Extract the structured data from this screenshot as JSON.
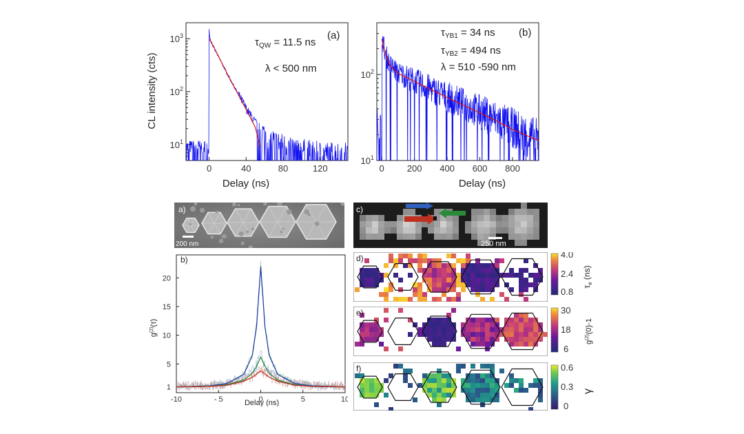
{
  "chart_data": [
    {
      "id": "top_a",
      "type": "line",
      "panel_label": "(a)",
      "annotations": [
        "τQW = 11.5 ns",
        "λ < 500 nm"
      ],
      "xlabel": "Delay (ns)",
      "ylabel": "CL intensity (cts)",
      "y_scale": "log",
      "xlim": [
        -25,
        150
      ],
      "ylim": [
        5,
        2000
      ],
      "x_ticks": [
        "0",
        "40",
        "80",
        "120"
      ],
      "y_ticks": [
        "10^1",
        "10^2",
        "10^3"
      ],
      "series": [
        {
          "color": "#1010ee",
          "style": "noisy-data",
          "x": [
            -20,
            -5,
            0,
            1,
            5,
            10,
            20,
            30,
            40,
            50,
            60,
            70,
            80,
            100,
            120,
            140
          ],
          "y": [
            9,
            8,
            1500,
            1000,
            680,
            460,
            210,
            100,
            48,
            26,
            16,
            12,
            10,
            8,
            7,
            7
          ]
        },
        {
          "color": "#d81818",
          "style": "fit",
          "x": [
            0,
            5,
            10,
            20,
            30,
            40,
            50,
            55
          ],
          "y": [
            1000,
            690,
            470,
            210,
            98,
            46,
            21,
            9
          ]
        }
      ]
    },
    {
      "id": "top_b",
      "type": "line",
      "panel_label": "(b)",
      "annotations": [
        "τYB1 = 34 ns",
        "τYB2 = 494 ns",
        "λ = 510 -590 nm"
      ],
      "xlabel": "Delay (ns)",
      "ylabel": "",
      "y_scale": "log",
      "xlim": [
        -30,
        960
      ],
      "ylim": [
        10,
        400
      ],
      "x_ticks": [
        "0",
        "200",
        "400",
        "600",
        "800"
      ],
      "y_ticks": [
        "10^1",
        "10^2"
      ],
      "series": [
        {
          "color": "#1010ee",
          "style": "noisy-data",
          "x": [
            -20,
            0,
            5,
            20,
            50,
            100,
            200,
            300,
            400,
            500,
            600,
            700,
            800,
            900,
            960
          ],
          "y": [
            25,
            300,
            260,
            180,
            130,
            105,
            85,
            68,
            55,
            45,
            37,
            30,
            24,
            19,
            17
          ]
        },
        {
          "color": "#d81818",
          "style": "fit",
          "x": [
            0,
            20,
            50,
            100,
            200,
            300,
            400,
            500,
            600,
            700,
            800,
            900,
            960
          ],
          "y": [
            260,
            175,
            128,
            103,
            83,
            67,
            54,
            44,
            36,
            29,
            23,
            19,
            17
          ]
        }
      ]
    },
    {
      "id": "g2",
      "type": "line",
      "panel_label": "b)",
      "xlabel": "Delay (ns)",
      "ylabel": "g(2)(τ)",
      "xlim": [
        -10,
        10
      ],
      "ylim": [
        0,
        24
      ],
      "x_ticks": [
        "-10",
        "- 5",
        "0",
        "5",
        "10"
      ],
      "y_ticks": [
        "1",
        "5",
        "10",
        "15",
        "20"
      ],
      "series": [
        {
          "color": "#2040a0",
          "x": [
            -10,
            -6,
            -4,
            -2,
            -1,
            -0.5,
            0,
            0.5,
            1,
            2,
            4,
            6,
            10
          ],
          "y": [
            1,
            1.2,
            1.6,
            3.2,
            6.5,
            11.5,
            22,
            11.5,
            6.5,
            3.2,
            1.6,
            1.2,
            1
          ]
        },
        {
          "color": "#2a8a3a",
          "x": [
            -10,
            -6,
            -4,
            -2,
            -1,
            -0.5,
            0,
            0.5,
            1,
            2,
            4,
            6,
            10
          ],
          "y": [
            1,
            1.1,
            1.4,
            2.2,
            3.4,
            4.6,
            6.2,
            4.6,
            3.4,
            2.2,
            1.4,
            1.1,
            1
          ]
        },
        {
          "color": "#c03020",
          "x": [
            -10,
            -6,
            -4,
            -2,
            -1,
            0,
            1,
            2,
            4,
            6,
            10
          ],
          "y": [
            1,
            1.1,
            1.3,
            2.0,
            2.7,
            3.8,
            2.7,
            2.0,
            1.3,
            1.1,
            1
          ]
        }
      ]
    }
  ],
  "panels": {
    "sem_label": "a)",
    "sem_scalebar": "200 nm",
    "cl_label": "c)",
    "cl_scalebar": "250 nm",
    "map_d": {
      "label": "d)",
      "colorbar_ticks": [
        "4.0",
        "2.4",
        "1.6",
        "0.8"
      ],
      "colorbar_title": "τe (ns)"
    },
    "map_e": {
      "label": "e)",
      "colorbar_ticks": [
        "30",
        "18",
        "6"
      ],
      "colorbar_title": "g(2)(0)-1"
    },
    "map_f": {
      "label": "f)",
      "colorbar_ticks": [
        "0.6",
        "0.3",
        "0"
      ],
      "colorbar_title": "γ"
    }
  },
  "colors": {
    "data_blue": "#1010ee",
    "fit_red": "#d81818",
    "arrow_blue": "#3060c0",
    "arrow_green": "#2a8a3a",
    "arrow_red": "#c03020"
  }
}
